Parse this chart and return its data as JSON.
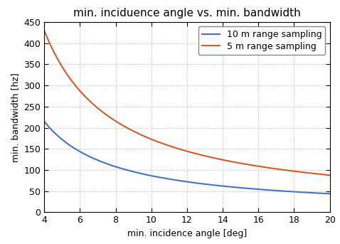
{
  "title": "min. inciduence angle vs. min. bandwidth",
  "xlabel": "min. incidence angle [deg]",
  "ylabel": "min. bandwidth [hz]",
  "xlim": [
    4,
    20
  ],
  "ylim": [
    0,
    450
  ],
  "xticks": [
    4,
    6,
    8,
    10,
    12,
    14,
    16,
    18,
    20
  ],
  "yticks": [
    0,
    50,
    100,
    150,
    200,
    250,
    300,
    350,
    400,
    450
  ],
  "line1_label": "10 m range sampling",
  "line1_color": "#4472C4",
  "line2_label": "5 m range sampling",
  "line2_color": "#D45B27",
  "background_color": "#ffffff",
  "grid_color": "#b0b0b0",
  "legend_loc": "upper right",
  "fig_width": 4.78,
  "fig_height": 3.43,
  "dpi": 100,
  "title_fontsize": 11,
  "label_fontsize": 9,
  "tick_fontsize": 9,
  "legend_fontsize": 9
}
